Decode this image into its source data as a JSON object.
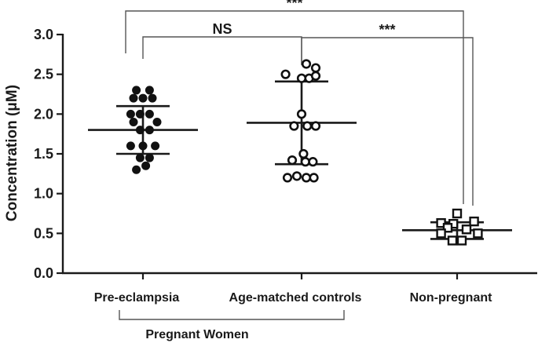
{
  "chart_data": {
    "type": "scatter",
    "title": "",
    "ylabel": "Concentration (μM)",
    "xlabel": "",
    "ylim": [
      0.0,
      3.0
    ],
    "yticks": [
      "0.0",
      "0.5",
      "1.0",
      "1.5",
      "2.0",
      "2.5",
      "3.0"
    ],
    "ytick_values": [
      0.0,
      0.5,
      1.0,
      1.5,
      2.0,
      2.5,
      3.0
    ],
    "grid": false,
    "categories": [
      "Pre-eclampsia",
      "Age-matched controls",
      "Non-pregnant"
    ],
    "group_label": "Pregnant Women",
    "series": [
      {
        "name": "Pre-eclampsia",
        "marker": "filled-circle",
        "color": "#111111",
        "mean": 1.8,
        "sd_upper": 2.1,
        "sd_lower": 1.5,
        "points": [
          {
            "offset": -0.7,
            "y": 2.3
          },
          {
            "offset": 0.7,
            "y": 2.3
          },
          {
            "offset": -1.0,
            "y": 2.2
          },
          {
            "offset": 0.0,
            "y": 2.2
          },
          {
            "offset": 1.0,
            "y": 2.2
          },
          {
            "offset": -1.3,
            "y": 2.0
          },
          {
            "offset": -0.3,
            "y": 2.0
          },
          {
            "offset": 0.7,
            "y": 2.0
          },
          {
            "offset": -1.0,
            "y": 1.9
          },
          {
            "offset": 1.5,
            "y": 1.9
          },
          {
            "offset": -0.3,
            "y": 1.8
          },
          {
            "offset": 0.7,
            "y": 1.8
          },
          {
            "offset": -1.3,
            "y": 1.6
          },
          {
            "offset": 0.0,
            "y": 1.6
          },
          {
            "offset": 1.3,
            "y": 1.6
          },
          {
            "offset": -0.3,
            "y": 1.45
          },
          {
            "offset": 0.7,
            "y": 1.45
          },
          {
            "offset": -0.7,
            "y": 1.3
          },
          {
            "offset": 0.3,
            "y": 1.35
          }
        ]
      },
      {
        "name": "Age-matched controls",
        "marker": "open-circle",
        "color": "#111111",
        "mean": 1.89,
        "sd_upper": 2.41,
        "sd_lower": 1.37,
        "points": [
          {
            "offset": 0.5,
            "y": 2.63
          },
          {
            "offset": 1.5,
            "y": 2.58
          },
          {
            "offset": -1.7,
            "y": 2.5
          },
          {
            "offset": 0.0,
            "y": 2.45
          },
          {
            "offset": 0.8,
            "y": 2.45
          },
          {
            "offset": 1.5,
            "y": 2.48
          },
          {
            "offset": 0.0,
            "y": 2.0
          },
          {
            "offset": -0.8,
            "y": 1.85
          },
          {
            "offset": 0.6,
            "y": 1.85
          },
          {
            "offset": 1.5,
            "y": 1.85
          },
          {
            "offset": 0.2,
            "y": 1.5
          },
          {
            "offset": -1.0,
            "y": 1.42
          },
          {
            "offset": 0.4,
            "y": 1.4
          },
          {
            "offset": 1.2,
            "y": 1.4
          },
          {
            "offset": -0.5,
            "y": 1.22
          },
          {
            "offset": -1.5,
            "y": 1.2
          },
          {
            "offset": 0.5,
            "y": 1.2
          },
          {
            "offset": 1.3,
            "y": 1.2
          }
        ]
      },
      {
        "name": "Non-pregnant",
        "marker": "open-square",
        "color": "#111111",
        "mean": 0.54,
        "sd_upper": 0.64,
        "sd_lower": 0.43,
        "points": [
          {
            "offset": 0.0,
            "y": 0.75
          },
          {
            "offset": -1.7,
            "y": 0.63
          },
          {
            "offset": -0.4,
            "y": 0.62
          },
          {
            "offset": 1.8,
            "y": 0.65
          },
          {
            "offset": -1.0,
            "y": 0.57
          },
          {
            "offset": 1.0,
            "y": 0.55
          },
          {
            "offset": -1.7,
            "y": 0.5
          },
          {
            "offset": 2.2,
            "y": 0.5
          },
          {
            "offset": -0.5,
            "y": 0.41
          },
          {
            "offset": 0.5,
            "y": 0.41
          }
        ]
      }
    ],
    "annotations": [
      {
        "from": "Pre-eclampsia",
        "to": "Age-matched controls",
        "label": "NS"
      },
      {
        "from": "Age-matched controls",
        "to": "Non-pregnant",
        "label": "***"
      },
      {
        "from": "Pre-eclampsia",
        "to": "Non-pregnant",
        "label": "***"
      }
    ]
  }
}
